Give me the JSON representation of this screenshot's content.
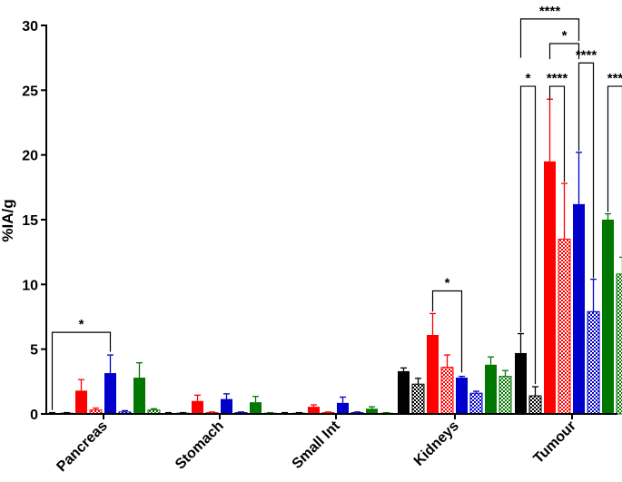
{
  "chart_data": {
    "type": "bar",
    "title": "",
    "xlabel": "",
    "ylabel": "%IA/g",
    "ylim": [
      0,
      30
    ],
    "yticks": [
      0,
      5,
      10,
      15,
      20,
      25,
      30
    ],
    "grid": false,
    "categories": [
      "Pancreas",
      "Stomach",
      "Small Int",
      "Kidneys",
      "Tumour"
    ],
    "series": [
      {
        "name": "black solid",
        "color": "#000000",
        "pattern": "solid",
        "values": [
          0.05,
          0.05,
          0.05,
          3.3,
          4.7
        ],
        "errors": [
          0.05,
          0.05,
          0.05,
          0.25,
          1.5
        ]
      },
      {
        "name": "black hatched",
        "color": "#000000",
        "pattern": "hatched",
        "values": [
          0.05,
          0.05,
          0.05,
          2.3,
          1.4
        ],
        "errors": [
          0.05,
          0.05,
          0.05,
          0.45,
          0.7
        ]
      },
      {
        "name": "red solid",
        "color": "#ff0000",
        "pattern": "solid",
        "values": [
          1.8,
          1.0,
          0.55,
          6.1,
          19.5
        ],
        "errors": [
          0.85,
          0.45,
          0.15,
          1.65,
          4.8
        ]
      },
      {
        "name": "red hatched",
        "color": "#ff0000",
        "pattern": "hatched",
        "values": [
          0.3,
          0.1,
          0.1,
          3.6,
          13.5
        ],
        "errors": [
          0.15,
          0.05,
          0.05,
          0.95,
          4.3
        ]
      },
      {
        "name": "blue solid",
        "color": "#0000cc",
        "pattern": "solid",
        "values": [
          3.15,
          1.15,
          0.85,
          2.8,
          16.2
        ],
        "errors": [
          1.4,
          0.4,
          0.45,
          0.1,
          4.0
        ]
      },
      {
        "name": "blue hatched",
        "color": "#0000cc",
        "pattern": "hatched",
        "values": [
          0.15,
          0.1,
          0.1,
          1.6,
          7.9
        ],
        "errors": [
          0.1,
          0.05,
          0.05,
          0.15,
          2.5
        ]
      },
      {
        "name": "green solid",
        "color": "#007700",
        "pattern": "solid",
        "values": [
          2.8,
          0.9,
          0.4,
          3.8,
          15.0
        ],
        "errors": [
          1.15,
          0.45,
          0.15,
          0.6,
          0.45
        ]
      },
      {
        "name": "green hatched",
        "color": "#007700",
        "pattern": "hatched",
        "values": [
          0.3,
          0.05,
          0.05,
          2.9,
          10.8
        ],
        "errors": [
          0.1,
          0.05,
          0.05,
          0.45,
          1.3
        ]
      }
    ],
    "significance": [
      {
        "category": "Pancreas",
        "from_series": 0,
        "to_series": 4,
        "label": "*",
        "level": 6.3,
        "drop_from": 0.3,
        "drop_to": 4.8
      },
      {
        "category": "Kidneys",
        "from_series": 2,
        "to_series": 4,
        "label": "*",
        "level": 9.5,
        "drop_from": 7.9,
        "drop_to": 3.2
      },
      {
        "category": "Tumour",
        "from_series": 0,
        "to_series": 1,
        "label": "*",
        "level": 25.3,
        "drop_from": 6.3,
        "drop_to": 2.3
      },
      {
        "category": "Tumour",
        "from_series": 2,
        "to_series": 3,
        "label": "****",
        "level": 25.3,
        "drop_from": 24.3,
        "drop_to": 17.9
      },
      {
        "category": "Tumour",
        "from_series": 4,
        "to_series": 5,
        "label": "****",
        "level": 27.1,
        "drop_from": 20.3,
        "drop_to": 10.5
      },
      {
        "category": "Tumour",
        "from_series": 6,
        "to_series": 7,
        "label": "***",
        "level": 25.3,
        "drop_from": 15.6,
        "drop_to": 12.2
      },
      {
        "category": "Tumour",
        "from_series": 2,
        "to_series": 4,
        "label": "*",
        "level": 28.6,
        "drop_from": 27.4,
        "drop_to": 27.4
      },
      {
        "category": "Tumour",
        "from_series": 0,
        "to_series": 4,
        "label": "****",
        "level": 30.5,
        "drop_from": 27.5,
        "drop_to": 28.8
      }
    ]
  }
}
